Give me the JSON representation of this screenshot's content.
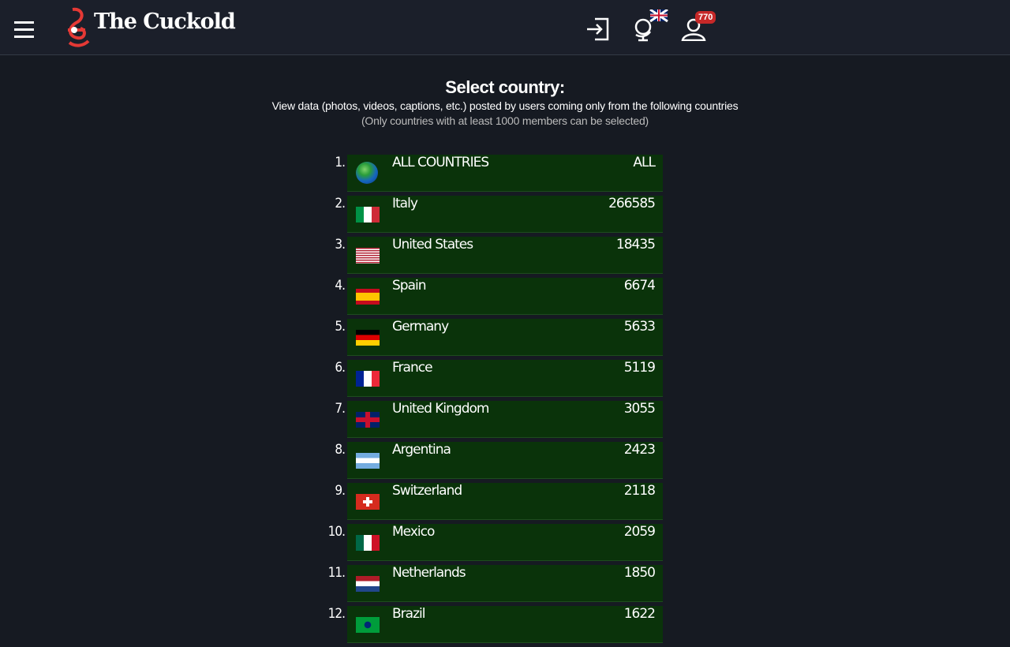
{
  "header": {
    "logo": "The Cuckold",
    "badge": "770"
  },
  "heading": {
    "title": "Select country:",
    "subtitle": "View data (photos, videos, captions, etc.) posted by users coming only from the following countries",
    "note": "(Only countries with at least 1000 members can be selected)"
  },
  "countries": [
    {
      "rank": "1.",
      "name": "ALL COUNTRIES",
      "count": "ALL"
    },
    {
      "rank": "2.",
      "name": "Italy",
      "count": 266585
    },
    {
      "rank": "3.",
      "name": "United States",
      "count": 18435
    },
    {
      "rank": "4.",
      "name": "Spain",
      "count": 6674
    },
    {
      "rank": "5.",
      "name": "Germany",
      "count": 5633
    },
    {
      "rank": "6.",
      "name": "France",
      "count": 5119
    },
    {
      "rank": "7.",
      "name": "United Kingdom",
      "count": 3055
    },
    {
      "rank": "8.",
      "name": "Argentina",
      "count": 2423
    },
    {
      "rank": "9.",
      "name": "Switzerland",
      "count": 2118
    },
    {
      "rank": "10.",
      "name": "Mexico",
      "count": 2059
    },
    {
      "rank": "11.",
      "name": "Netherlands",
      "count": 1850
    },
    {
      "rank": "12.",
      "name": "Brazil",
      "count": 1622
    }
  ]
}
